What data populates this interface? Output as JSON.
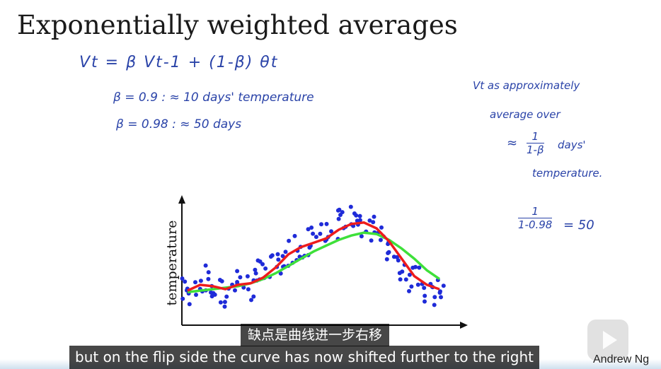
{
  "slide": {
    "title": "Exponentially weighted averages",
    "equation": "Vt = β Vt-1 + (1-β) θt",
    "beta_line_1": "β = 0.9   :  ≈ 10 days' temperature",
    "beta_line_2": "β = 0.98  :  ≈ 50 days",
    "note_line_1": "Vt as approximately",
    "note_line_2": "average over",
    "approx_symbol": "≈",
    "frac1_num": "1",
    "frac1_den": "1-β",
    "days_label": "days'",
    "temperature_label": "temperature.",
    "frac2_num": "1",
    "frac2_den": "1-0.98",
    "equals_50": "= 50"
  },
  "chart_data": {
    "type": "scatter",
    "ylabel": "temperature",
    "xlabel": "",
    "scatter_color": "#1f2bd8",
    "red_line_color": "#ee1c1c",
    "green_line_color": "#3ee03a",
    "x": [
      0,
      5,
      10,
      15,
      20,
      25,
      30,
      35,
      40,
      45,
      50,
      55,
      60,
      65,
      70,
      75,
      80,
      85,
      90,
      95,
      100
    ],
    "temperature": [
      38,
      45,
      40,
      36,
      44,
      42,
      48,
      55,
      65,
      70,
      72,
      75,
      83,
      85,
      86,
      80,
      70,
      56,
      44,
      38,
      36
    ],
    "red_average": [
      38,
      42,
      41,
      39,
      42,
      43,
      47,
      54,
      63,
      68,
      71,
      74,
      80,
      84,
      85,
      81,
      72,
      60,
      48,
      42,
      39
    ],
    "green_average": [
      37,
      38,
      39,
      40,
      41,
      43,
      46,
      50,
      55,
      60,
      65,
      69,
      73,
      76,
      78,
      77,
      73,
      67,
      60,
      52,
      46
    ],
    "xlim": [
      0,
      100
    ],
    "ylim": [
      20,
      100
    ]
  },
  "subtitles": {
    "chinese": "缺点是曲线进一步右移",
    "english": "but on the flip side the curve has now shifted further to the right"
  },
  "watermark": {
    "author": "Andrew Ng",
    "icon": "play-icon"
  }
}
